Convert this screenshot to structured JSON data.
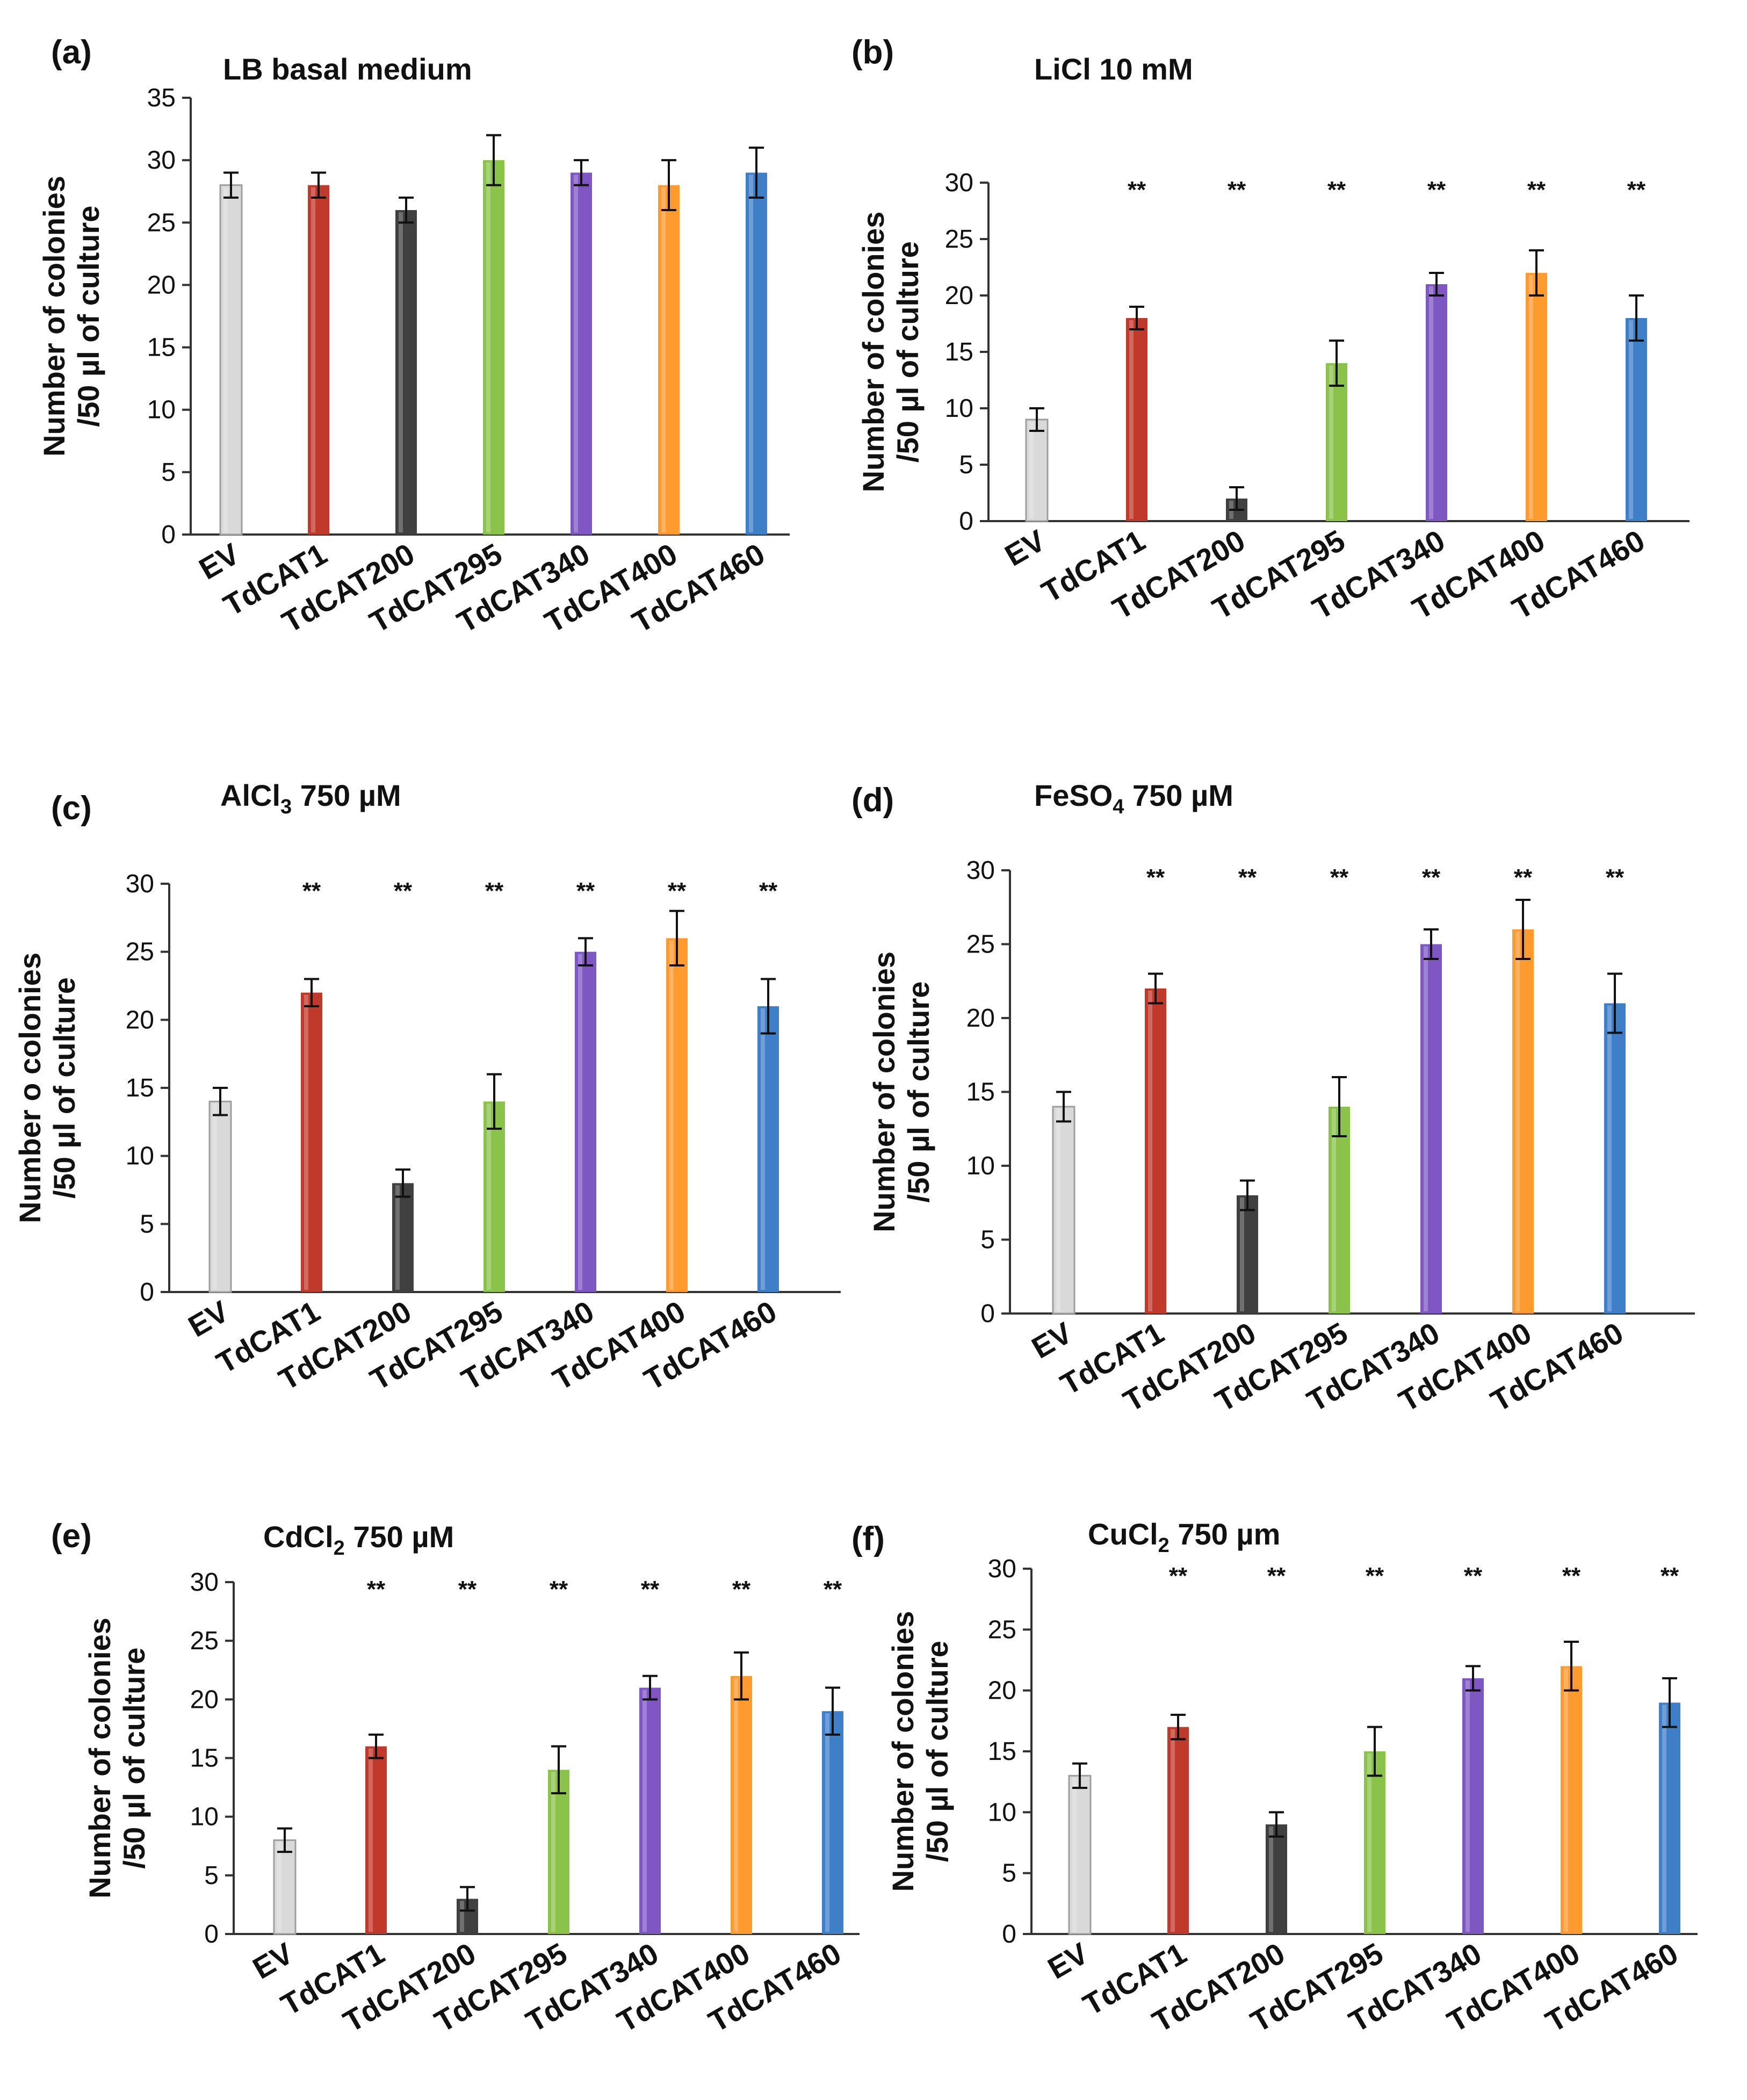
{
  "colors": {
    "EV": "#d9d9d9",
    "TdCAT1": "#c0392b",
    "TdCAT200": "#404040",
    "TdCAT295": "#8bc34a",
    "TdCAT340": "#7e57c2",
    "TdCAT400": "#ff9a2e",
    "TdCAT460": "#3f7fc8"
  },
  "chart_data": [
    {
      "panel": "(a)",
      "type": "bar",
      "title": "LB basal medium",
      "title_sub": "",
      "title_rest": "",
      "ylabel_line1": "Number of colonies",
      "ylabel_line2": "/50 µl of culture",
      "ylim": [
        0,
        35
      ],
      "yticks": [
        "0",
        "5",
        "10",
        "15",
        "20",
        "25",
        "30",
        "35"
      ],
      "categories": [
        "EV",
        "TdCAT1",
        "TdCAT200",
        "TdCAT295",
        "TdCAT340",
        "TdCAT400",
        "TdCAT460"
      ],
      "values": [
        28,
        28,
        26,
        30,
        29,
        28,
        29
      ],
      "errors": [
        1,
        1,
        1,
        2,
        1,
        2,
        2
      ],
      "significance": [
        "",
        "",
        "",
        "",
        "",
        "",
        ""
      ]
    },
    {
      "panel": "(b)",
      "type": "bar",
      "title": "LiCl 10 mM",
      "title_sub": "",
      "title_rest": "",
      "ylabel_line1": "Number of colonies",
      "ylabel_line2": "/50 µl  of culture",
      "ylim": [
        0,
        30
      ],
      "yticks": [
        "0",
        "5",
        "10",
        "15",
        "20",
        "25",
        "30"
      ],
      "categories": [
        "EV",
        "TdCAT1",
        "TdCAT200",
        "TdCAT295",
        "TdCAT340",
        "TdCAT400",
        "TdCAT460"
      ],
      "values": [
        9,
        18,
        2,
        14,
        21,
        22,
        18
      ],
      "errors": [
        1,
        1,
        1,
        2,
        1,
        2,
        2
      ],
      "significance": [
        "",
        "**",
        "**",
        "**",
        "**",
        "**",
        "**"
      ]
    },
    {
      "panel": "(c)",
      "type": "bar",
      "title": "AlCl",
      "title_sub": "3",
      "title_rest": " 750 µM",
      "ylabel_line1": "Number o colonies",
      "ylabel_line2": "/50 µl of culture",
      "ylim": [
        0,
        30
      ],
      "yticks": [
        "0",
        "5",
        "10",
        "15",
        "20",
        "25",
        "30"
      ],
      "categories": [
        "EV",
        "TdCAT1",
        "TdCAT200",
        "TdCAT295",
        "TdCAT340",
        "TdCAT400",
        "TdCAT460"
      ],
      "values": [
        14,
        22,
        8,
        14,
        25,
        26,
        21
      ],
      "errors": [
        1,
        1,
        1,
        2,
        1,
        2,
        2
      ],
      "significance": [
        "",
        "**",
        "**",
        "**",
        "**",
        "**",
        "**"
      ]
    },
    {
      "panel": "(d)",
      "type": "bar",
      "title": "FeSO",
      "title_sub": "4",
      "title_rest": " 750 µM",
      "ylabel_line1": "Number of colonies",
      "ylabel_line2": "/50 µl of culture",
      "ylim": [
        0,
        30
      ],
      "yticks": [
        "0",
        "5",
        "10",
        "15",
        "20",
        "25",
        "30"
      ],
      "categories": [
        "EV",
        "TdCAT1",
        "TdCAT200",
        "TdCAT295",
        "TdCAT340",
        "TdCAT400",
        "TdCAT460"
      ],
      "values": [
        14,
        22,
        8,
        14,
        25,
        26,
        21
      ],
      "errors": [
        1,
        1,
        1,
        2,
        1,
        2,
        2
      ],
      "significance": [
        "",
        "**",
        "**",
        "**",
        "**",
        "**",
        "**"
      ]
    },
    {
      "panel": "(e)",
      "type": "bar",
      "title": "CdCl",
      "title_sub": "2",
      "title_rest": " 750 µM",
      "ylabel_line1": "Number of colonies",
      "ylabel_line2": "/50 µl of culture",
      "ylim": [
        0,
        30
      ],
      "yticks": [
        "0",
        "5",
        "10",
        "15",
        "20",
        "25",
        "30"
      ],
      "categories": [
        "EV",
        "TdCAT1",
        "TdCAT200",
        "TdCAT295",
        "TdCAT340",
        "TdCAT400",
        "TdCAT460"
      ],
      "values": [
        8,
        16,
        3,
        14,
        21,
        22,
        19
      ],
      "errors": [
        1,
        1,
        1,
        2,
        1,
        2,
        2
      ],
      "significance": [
        "",
        "**",
        "**",
        "**",
        "**",
        "**",
        "**"
      ]
    },
    {
      "panel": "(f)",
      "type": "bar",
      "title": "CuCl",
      "title_sub": "2",
      "title_rest": " 750 µm",
      "ylabel_line1": "Number of colonies",
      "ylabel_line2": "/50 µl of culture",
      "ylim": [
        0,
        30
      ],
      "yticks": [
        "0",
        "5",
        "10",
        "15",
        "20",
        "25",
        "30"
      ],
      "categories": [
        "EV",
        "TdCAT1",
        "TdCAT200",
        "TdCAT295",
        "TdCAT340",
        "TdCAT400",
        "TdCAT460"
      ],
      "values": [
        13,
        17,
        9,
        15,
        21,
        22,
        19
      ],
      "errors": [
        1,
        1,
        1,
        2,
        1,
        2,
        2
      ],
      "significance": [
        "",
        "**",
        "**",
        "**",
        "**",
        "**",
        "**"
      ]
    }
  ]
}
